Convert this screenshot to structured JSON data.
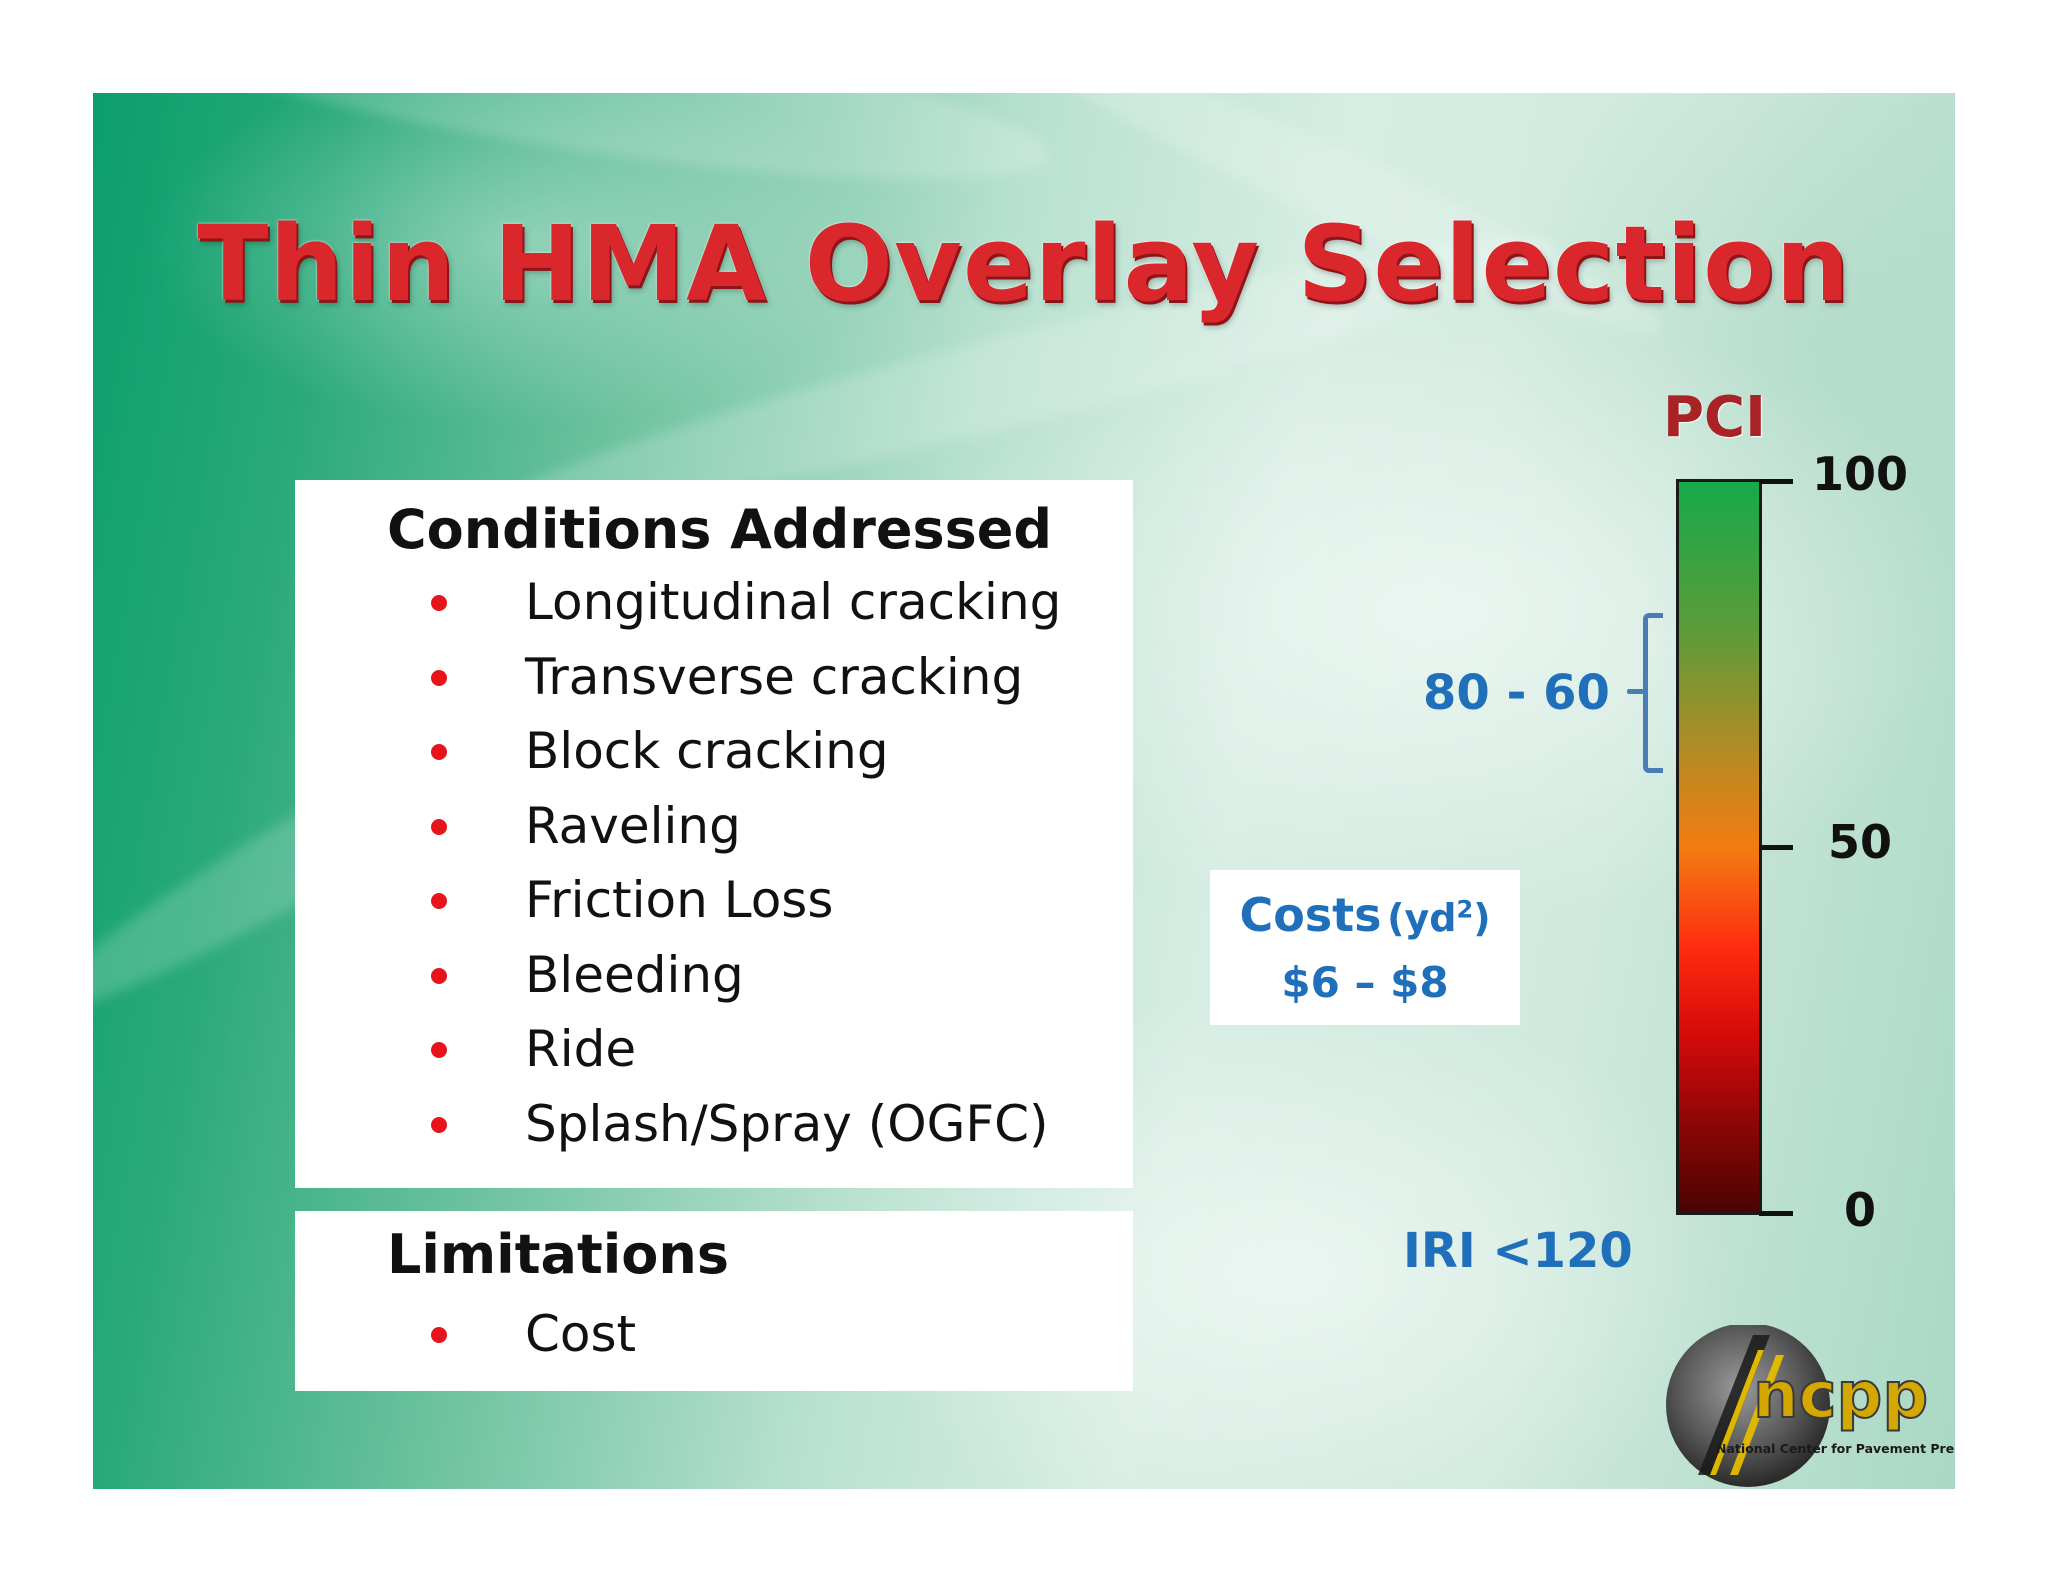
{
  "slide": {
    "title": "Thin HMA Overlay Selection"
  },
  "conditions": {
    "heading": "Conditions Addressed",
    "items": [
      "Longitudinal cracking",
      "Transverse cracking",
      "Block cracking",
      "Raveling",
      "Friction Loss",
      "Bleeding",
      "Ride",
      "Splash/Spray (OGFC)"
    ]
  },
  "limitations": {
    "heading": "Limitations",
    "items": [
      "Cost"
    ]
  },
  "pci_scale": {
    "label": "PCI",
    "ticks": [
      "100",
      "50",
      "0"
    ],
    "range_label": "80 - 60",
    "range_from": 80,
    "range_to": 60
  },
  "costs": {
    "title": "Costs",
    "unit_prefix": "(yd",
    "unit_superscript": "2",
    "unit_suffix": ")",
    "range": "$6 – $8"
  },
  "iri": {
    "label": "IRI <120"
  },
  "logo": {
    "name": "ncpp",
    "subtitle": "National Center for Pavement Preservation"
  },
  "colors": {
    "title_red": "#d9272c",
    "accent_blue": "#1f6fbb",
    "bullet_red": "#e8141b",
    "pci_label_red": "#a82226"
  }
}
